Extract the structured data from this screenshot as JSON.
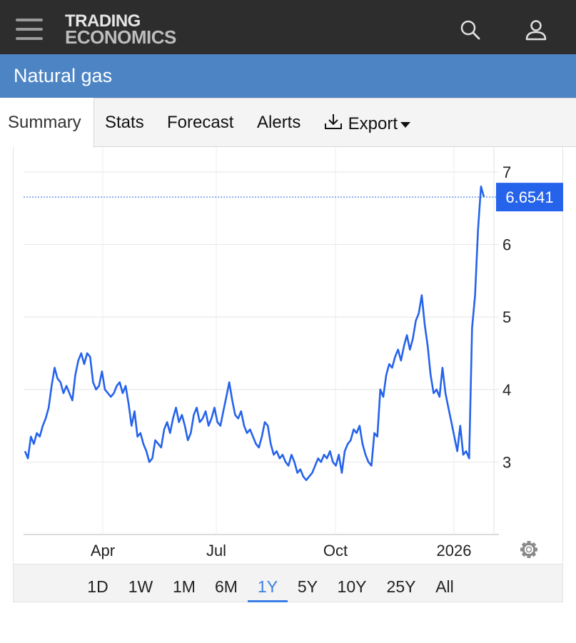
{
  "header": {
    "logo_line1": "TRADING",
    "logo_line2": "ECONOMICS",
    "menu_icon": "hamburger-icon",
    "search_icon": "search-icon",
    "user_icon": "user-icon"
  },
  "page": {
    "title": "Natural gas"
  },
  "tabs": [
    {
      "label": "Summary",
      "active": true
    },
    {
      "label": "Stats"
    },
    {
      "label": "Forecast"
    },
    {
      "label": "Alerts"
    },
    {
      "label": "Export",
      "icon": "download-icon"
    }
  ],
  "chart_data": {
    "type": "line",
    "x_tick_labels": [
      "Apr",
      "Jul",
      "Oct",
      "2026"
    ],
    "y_tick_labels": [
      "3",
      "4",
      "5",
      "6",
      "7"
    ],
    "ylim": [
      2.0,
      7.1
    ],
    "grid": true,
    "line_color": "#2563eb",
    "last_value": 6.6541,
    "last_value_label": "6.6541",
    "settings_icon": "gear-icon",
    "series": [
      {
        "values": [
          3.15,
          3.05,
          3.35,
          3.25,
          3.4,
          3.35,
          3.5,
          3.6,
          3.75,
          4.05,
          4.3,
          4.15,
          4.1,
          3.95,
          4.05,
          3.95,
          3.85,
          4.2,
          4.4,
          4.5,
          4.35,
          4.5,
          4.45,
          4.1,
          4.0,
          4.05,
          4.25,
          4.0,
          3.95,
          3.9,
          3.95,
          4.05,
          4.1,
          3.95,
          4.05,
          3.8,
          3.5,
          3.7,
          3.35,
          3.4,
          3.25,
          3.15,
          3.0,
          3.05,
          3.3,
          3.25,
          3.2,
          3.45,
          3.55,
          3.4,
          3.6,
          3.75,
          3.55,
          3.65,
          3.5,
          3.3,
          3.4,
          3.65,
          3.75,
          3.55,
          3.6,
          3.7,
          3.5,
          3.6,
          3.75,
          3.55,
          3.5,
          3.7,
          3.9,
          4.1,
          3.85,
          3.65,
          3.6,
          3.7,
          3.5,
          3.4,
          3.45,
          3.35,
          3.25,
          3.2,
          3.35,
          3.55,
          3.5,
          3.25,
          3.1,
          3.15,
          3.05,
          3.1,
          3.0,
          2.95,
          3.1,
          3.0,
          2.85,
          2.9,
          2.8,
          2.75,
          2.8,
          2.85,
          2.95,
          3.05,
          3.0,
          3.1,
          3.05,
          3.15,
          3.0,
          2.95,
          3.1,
          2.85,
          3.15,
          3.25,
          3.3,
          3.45,
          3.4,
          3.5,
          3.25,
          3.1,
          3.0,
          2.95,
          3.4,
          3.35,
          4.0,
          3.9,
          4.2,
          4.35,
          4.3,
          4.45,
          4.55,
          4.4,
          4.6,
          4.75,
          4.55,
          4.7,
          4.95,
          5.05,
          5.3,
          4.9,
          4.6,
          4.2,
          3.95,
          4.0,
          3.9,
          4.3,
          3.95,
          3.75,
          3.55,
          3.35,
          3.15,
          3.5,
          3.1,
          3.15,
          3.05,
          4.85,
          5.3,
          6.2,
          6.8,
          6.6541
        ]
      }
    ]
  },
  "ranges": [
    {
      "label": "1D"
    },
    {
      "label": "1W"
    },
    {
      "label": "1M"
    },
    {
      "label": "6M"
    },
    {
      "label": "1Y",
      "active": true
    },
    {
      "label": "5Y"
    },
    {
      "label": "10Y"
    },
    {
      "label": "25Y"
    },
    {
      "label": "All"
    }
  ]
}
